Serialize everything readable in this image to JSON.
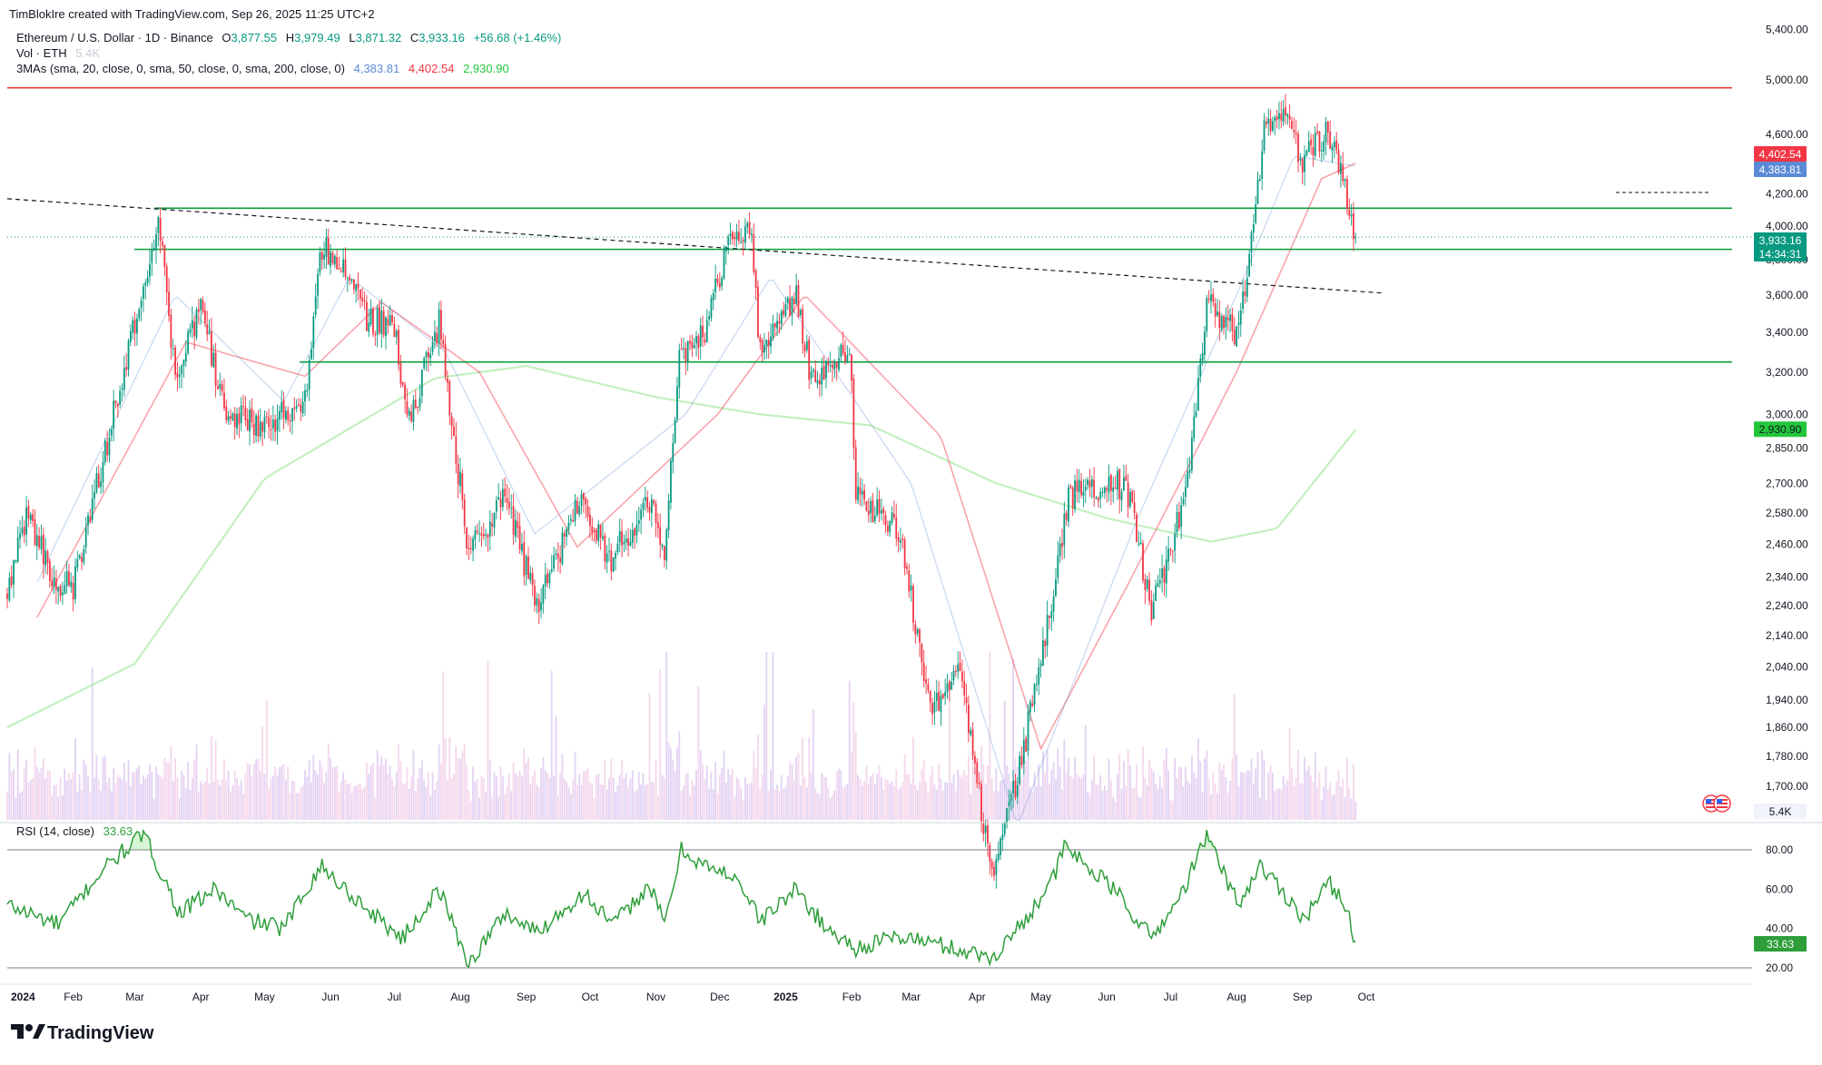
{
  "header": {
    "created_line": "TimBlokIre created with TradingView.com, Sep 26, 2025 11:25 UTC+2",
    "symbol_line": {
      "name": "Ethereum / U.S. Dollar · 1D · Binance",
      "o_label": "O",
      "o_value": "3,877.55",
      "h_label": "H",
      "h_value": "3,979.49",
      "l_label": "L",
      "l_value": "3,871.32",
      "c_label": "C",
      "c_value": "3,933.16",
      "change": "+56.68 (+1.46%)"
    },
    "vol_line": {
      "label": "Vol · ETH",
      "value": "5.4K"
    },
    "ma_line": {
      "label": "3MAs (sma, 20, close, 0, sma, 50, close, 0, sma, 200, close, 0)",
      "v20": "4,383.81",
      "v50": "4,402.54",
      "v200": "2,930.90"
    },
    "rsi_line": {
      "label": "RSI (14, close)",
      "value": "33.63"
    }
  },
  "colors": {
    "up": "#089981",
    "down": "#f23645",
    "ma20": "#5b8bd6",
    "ma50": "#f23645",
    "ma200": "#4caf50",
    "support": "#089e3a",
    "resistance": "#e53935",
    "rsi": "#2e9e3a"
  },
  "price_labels": [
    {
      "text": "4,402.54",
      "color": "#f23645"
    },
    {
      "text": "4,383.81",
      "color": "#5b8bd6"
    },
    {
      "text": "3,933.16",
      "color": "#089981"
    },
    {
      "text": "14:34:31",
      "color": "#089981"
    },
    {
      "text": "2,930.90",
      "color": "#22c73b"
    },
    {
      "text": "5.4K",
      "color": "#f0f3fa"
    },
    {
      "text": "33.63",
      "color": "#2e9e3a"
    }
  ],
  "footer": {
    "brand": "TradingView",
    "logo_icon": "tradingview-logo-icon",
    "flag_icon": "us-flag-icon"
  },
  "chart_data": [
    {
      "type": "candlestick",
      "title": "Ethereum / U.S. Dollar · 1D · Binance",
      "y_scale": "log",
      "y_ticks": [
        "5,400.00",
        "5,000.00",
        "4,600.00",
        "4,200.00",
        "4,000.00",
        "3,800.00",
        "3,600.00",
        "3,400.00",
        "3,200.00",
        "3,000.00",
        "2,850.00",
        "2,700.00",
        "2,580.00",
        "2,460.00",
        "2,340.00",
        "2,240.00",
        "2,140.00",
        "2,040.00",
        "1,940.00",
        "1,860.00",
        "1,780.00",
        "1,700.00"
      ],
      "x_ticks": [
        "2024",
        "Feb",
        "Mar",
        "Apr",
        "May",
        "Jun",
        "Jul",
        "Aug",
        "Sep",
        "Oct",
        "Nov",
        "Dec",
        "2025",
        "Feb",
        "Mar",
        "Apr",
        "May",
        "Jun",
        "Jul",
        "Aug",
        "Sep",
        "Oct"
      ],
      "x_range": [
        "2024-01-01",
        "2025-10-01"
      ],
      "close_path": [
        [
          "2024-01-01",
          2280
        ],
        [
          "2024-01-10",
          2580
        ],
        [
          "2024-01-22",
          2340
        ],
        [
          "2024-02-01",
          2300
        ],
        [
          "2024-02-15",
          2800
        ],
        [
          "2024-03-01",
          3450
        ],
        [
          "2024-03-12",
          4020
        ],
        [
          "2024-03-20",
          3200
        ],
        [
          "2024-04-01",
          3520
        ],
        [
          "2024-04-13",
          3000
        ],
        [
          "2024-05-01",
          2950
        ],
        [
          "2024-05-20",
          3050
        ],
        [
          "2024-05-27",
          3880
        ],
        [
          "2024-06-07",
          3760
        ],
        [
          "2024-06-18",
          3480
        ],
        [
          "2024-07-01",
          3420
        ],
        [
          "2024-07-08",
          2960
        ],
        [
          "2024-07-22",
          3460
        ],
        [
          "2024-08-05",
          2430
        ],
        [
          "2024-08-22",
          2640
        ],
        [
          "2024-09-06",
          2240
        ],
        [
          "2024-09-27",
          2650
        ],
        [
          "2024-10-10",
          2400
        ],
        [
          "2024-10-29",
          2640
        ],
        [
          "2024-11-05",
          2420
        ],
        [
          "2024-11-12",
          3300
        ],
        [
          "2024-11-24",
          3380
        ],
        [
          "2024-12-06",
          3990
        ],
        [
          "2024-12-16",
          3950
        ],
        [
          "2024-12-20",
          3280
        ],
        [
          "2025-01-06",
          3630
        ],
        [
          "2025-01-13",
          3150
        ],
        [
          "2025-01-31",
          3340
        ],
        [
          "2025-02-03",
          2650
        ],
        [
          "2025-02-24",
          2500
        ],
        [
          "2025-03-10",
          1900
        ],
        [
          "2025-03-24",
          2050
        ],
        [
          "2025-04-08",
          1470
        ],
        [
          "2025-04-22",
          1770
        ],
        [
          "2025-05-08",
          2340
        ],
        [
          "2025-05-14",
          2650
        ],
        [
          "2025-06-10",
          2700
        ],
        [
          "2025-06-22",
          2230
        ],
        [
          "2025-07-01",
          2440
        ],
        [
          "2025-07-10",
          2760
        ],
        [
          "2025-07-18",
          3560
        ],
        [
          "2025-08-02",
          3380
        ],
        [
          "2025-08-10",
          4200
        ],
        [
          "2025-08-14",
          4600
        ],
        [
          "2025-08-22",
          4800
        ],
        [
          "2025-09-01",
          4400
        ],
        [
          "2025-09-13",
          4650
        ],
        [
          "2025-09-22",
          4150
        ],
        [
          "2025-09-26",
          3933
        ]
      ],
      "moving_averages": [
        {
          "name": "sma 20",
          "path": [
            [
              "2024-01-15",
              2320
            ],
            [
              "2024-03-20",
              3600
            ],
            [
              "2024-05-10",
              3060
            ],
            [
              "2024-06-10",
              3700
            ],
            [
              "2024-07-25",
              3300
            ],
            [
              "2024-09-05",
              2500
            ],
            [
              "2024-11-15",
              3000
            ],
            [
              "2024-12-25",
              3700
            ],
            [
              "2025-03-01",
              2700
            ],
            [
              "2025-04-20",
              1600
            ],
            [
              "2025-06-15",
              2550
            ],
            [
              "2025-08-01",
              3600
            ],
            [
              "2025-08-28",
              4450
            ],
            [
              "2025-09-26",
              4384
            ]
          ]
        },
        {
          "name": "sma 50",
          "path": [
            [
              "2024-01-15",
              2200
            ],
            [
              "2024-03-25",
              3350
            ],
            [
              "2024-05-20",
              3180
            ],
            [
              "2024-06-25",
              3560
            ],
            [
              "2024-08-10",
              3200
            ],
            [
              "2024-09-25",
              2450
            ],
            [
              "2024-11-30",
              3000
            ],
            [
              "2025-01-10",
              3600
            ],
            [
              "2025-03-15",
              2900
            ],
            [
              "2025-05-01",
              1800
            ],
            [
              "2025-06-10",
              2300
            ],
            [
              "2025-08-01",
              3200
            ],
            [
              "2025-09-10",
              4300
            ],
            [
              "2025-09-26",
              4403
            ]
          ]
        },
        {
          "name": "sma 200",
          "path": [
            [
              "2024-01-01",
              1860
            ],
            [
              "2024-03-01",
              2050
            ],
            [
              "2024-05-01",
              2720
            ],
            [
              "2024-07-20",
              3170
            ],
            [
              "2024-09-01",
              3230
            ],
            [
              "2024-11-01",
              3080
            ],
            [
              "2024-12-20",
              3000
            ],
            [
              "2025-02-10",
              2950
            ],
            [
              "2025-04-10",
              2700
            ],
            [
              "2025-06-01",
              2560
            ],
            [
              "2025-07-20",
              2470
            ],
            [
              "2025-08-20",
              2520
            ],
            [
              "2025-09-26",
              2931
            ]
          ]
        }
      ],
      "horizontal_levels": [
        {
          "name": "resistance",
          "value": 4940
        },
        {
          "name": "support",
          "value": 4110
        },
        {
          "name": "support",
          "value": 3860
        },
        {
          "name": "support",
          "value": 3250
        }
      ],
      "trendline": {
        "start": [
          "2024-01-01",
          4170
        ],
        "end": [
          "2025-10-01",
          3610
        ]
      },
      "last_price": 3933.16
    },
    {
      "type": "line",
      "title": "RSI (14, close)",
      "y_ticks": [
        "80.00",
        "60.00",
        "40.00",
        "20.00"
      ],
      "levels": [
        80,
        20
      ],
      "path": [
        [
          "2024-01-01",
          52
        ],
        [
          "2024-01-25",
          42
        ],
        [
          "2024-02-15",
          70
        ],
        [
          "2024-03-05",
          88
        ],
        [
          "2024-03-22",
          48
        ],
        [
          "2024-04-08",
          60
        ],
        [
          "2024-04-22",
          45
        ],
        [
          "2024-05-10",
          40
        ],
        [
          "2024-05-27",
          72
        ],
        [
          "2024-06-18",
          50
        ],
        [
          "2024-07-05",
          35
        ],
        [
          "2024-07-22",
          60
        ],
        [
          "2024-08-05",
          22
        ],
        [
          "2024-08-22",
          48
        ],
        [
          "2024-09-06",
          38
        ],
        [
          "2024-09-28",
          58
        ],
        [
          "2024-10-12",
          42
        ],
        [
          "2024-10-29",
          62
        ],
        [
          "2024-11-05",
          42
        ],
        [
          "2024-11-13",
          80
        ],
        [
          "2024-11-30",
          68
        ],
        [
          "2024-12-08",
          68
        ],
        [
          "2024-12-20",
          44
        ],
        [
          "2025-01-06",
          60
        ],
        [
          "2025-01-20",
          40
        ],
        [
          "2025-02-03",
          30
        ],
        [
          "2025-02-24",
          36
        ],
        [
          "2025-03-10",
          33
        ],
        [
          "2025-04-08",
          25
        ],
        [
          "2025-04-24",
          45
        ],
        [
          "2025-05-08",
          68
        ],
        [
          "2025-05-12",
          82
        ],
        [
          "2025-06-06",
          58
        ],
        [
          "2025-06-22",
          35
        ],
        [
          "2025-07-05",
          55
        ],
        [
          "2025-07-18",
          87
        ],
        [
          "2025-08-02",
          52
        ],
        [
          "2025-08-12",
          72
        ],
        [
          "2025-08-22",
          60
        ],
        [
          "2025-09-02",
          45
        ],
        [
          "2025-09-13",
          63
        ],
        [
          "2025-09-20",
          56
        ],
        [
          "2025-09-26",
          33.63
        ]
      ]
    }
  ]
}
